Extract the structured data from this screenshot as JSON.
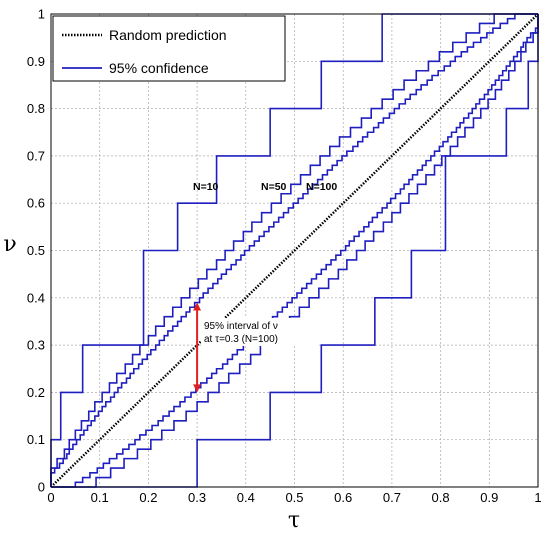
{
  "chart_data": {
    "type": "line",
    "xlabel": "τ",
    "ylabel": "ν",
    "xlim": [
      0,
      1
    ],
    "ylim": [
      0,
      1
    ],
    "xticks": [
      "0",
      "0.1",
      "0.2",
      "0.3",
      "0.4",
      "0.5",
      "0.6",
      "0.7",
      "0.8",
      "0.9",
      "1"
    ],
    "yticks": [
      "0",
      "0.1",
      "0.2",
      "0.3",
      "0.4",
      "0.5",
      "0.6",
      "0.7",
      "0.8",
      "0.9",
      "1"
    ],
    "grid": "on",
    "legend_position": "top-left",
    "legend": [
      {
        "label": "Random prediction",
        "style": "dotted",
        "color": "#000000"
      },
      {
        "label": "95% confidence",
        "style": "solid",
        "color": "#1f1fbf"
      }
    ],
    "series": [
      {
        "name": "Random prediction",
        "kind": "diagonal",
        "x": [
          0,
          1
        ],
        "y": [
          0,
          1
        ]
      },
      {
        "label": "N=10",
        "kind": "staircase-band",
        "N": 10,
        "upper": {
          "x": [
            0,
            0.02,
            0.065,
            0.19,
            0.26,
            0.34,
            0.45,
            0.555,
            0.68,
            0.75,
            0.81
          ],
          "y": [
            0.1,
            0.2,
            0.3,
            0.5,
            0.6,
            0.7,
            0.8,
            0.9,
            1.0,
            1.0,
            1.0
          ]
        },
        "lower": {
          "x": [
            0.3,
            0.45,
            0.555,
            0.665,
            0.74,
            0.81,
            0.935,
            0.98,
            1.0
          ],
          "y": [
            0.1,
            0.2,
            0.3,
            0.4,
            0.5,
            0.7,
            0.8,
            0.9,
            1.0
          ]
        }
      },
      {
        "label": "N=50",
        "kind": "staircase-band",
        "N": 50,
        "half_width_at_0.5": 0.14
      },
      {
        "label": "N=100",
        "kind": "staircase-band",
        "N": 100,
        "half_width_at_0.5": 0.1
      }
    ],
    "annotations": [
      {
        "text": "N=10",
        "x": 0.3,
        "y": 0.63
      },
      {
        "text": "N=50",
        "x": 0.46,
        "y": 0.63
      },
      {
        "text": "N=100",
        "x": 0.56,
        "y": 0.63
      },
      {
        "text_lines": [
          "95% interval of ν",
          "at τ=0.3 (N=100)"
        ],
        "x": 0.3,
        "y_from": 0.2,
        "y_to": 0.39,
        "arrow_color": "#e02020"
      }
    ]
  }
}
